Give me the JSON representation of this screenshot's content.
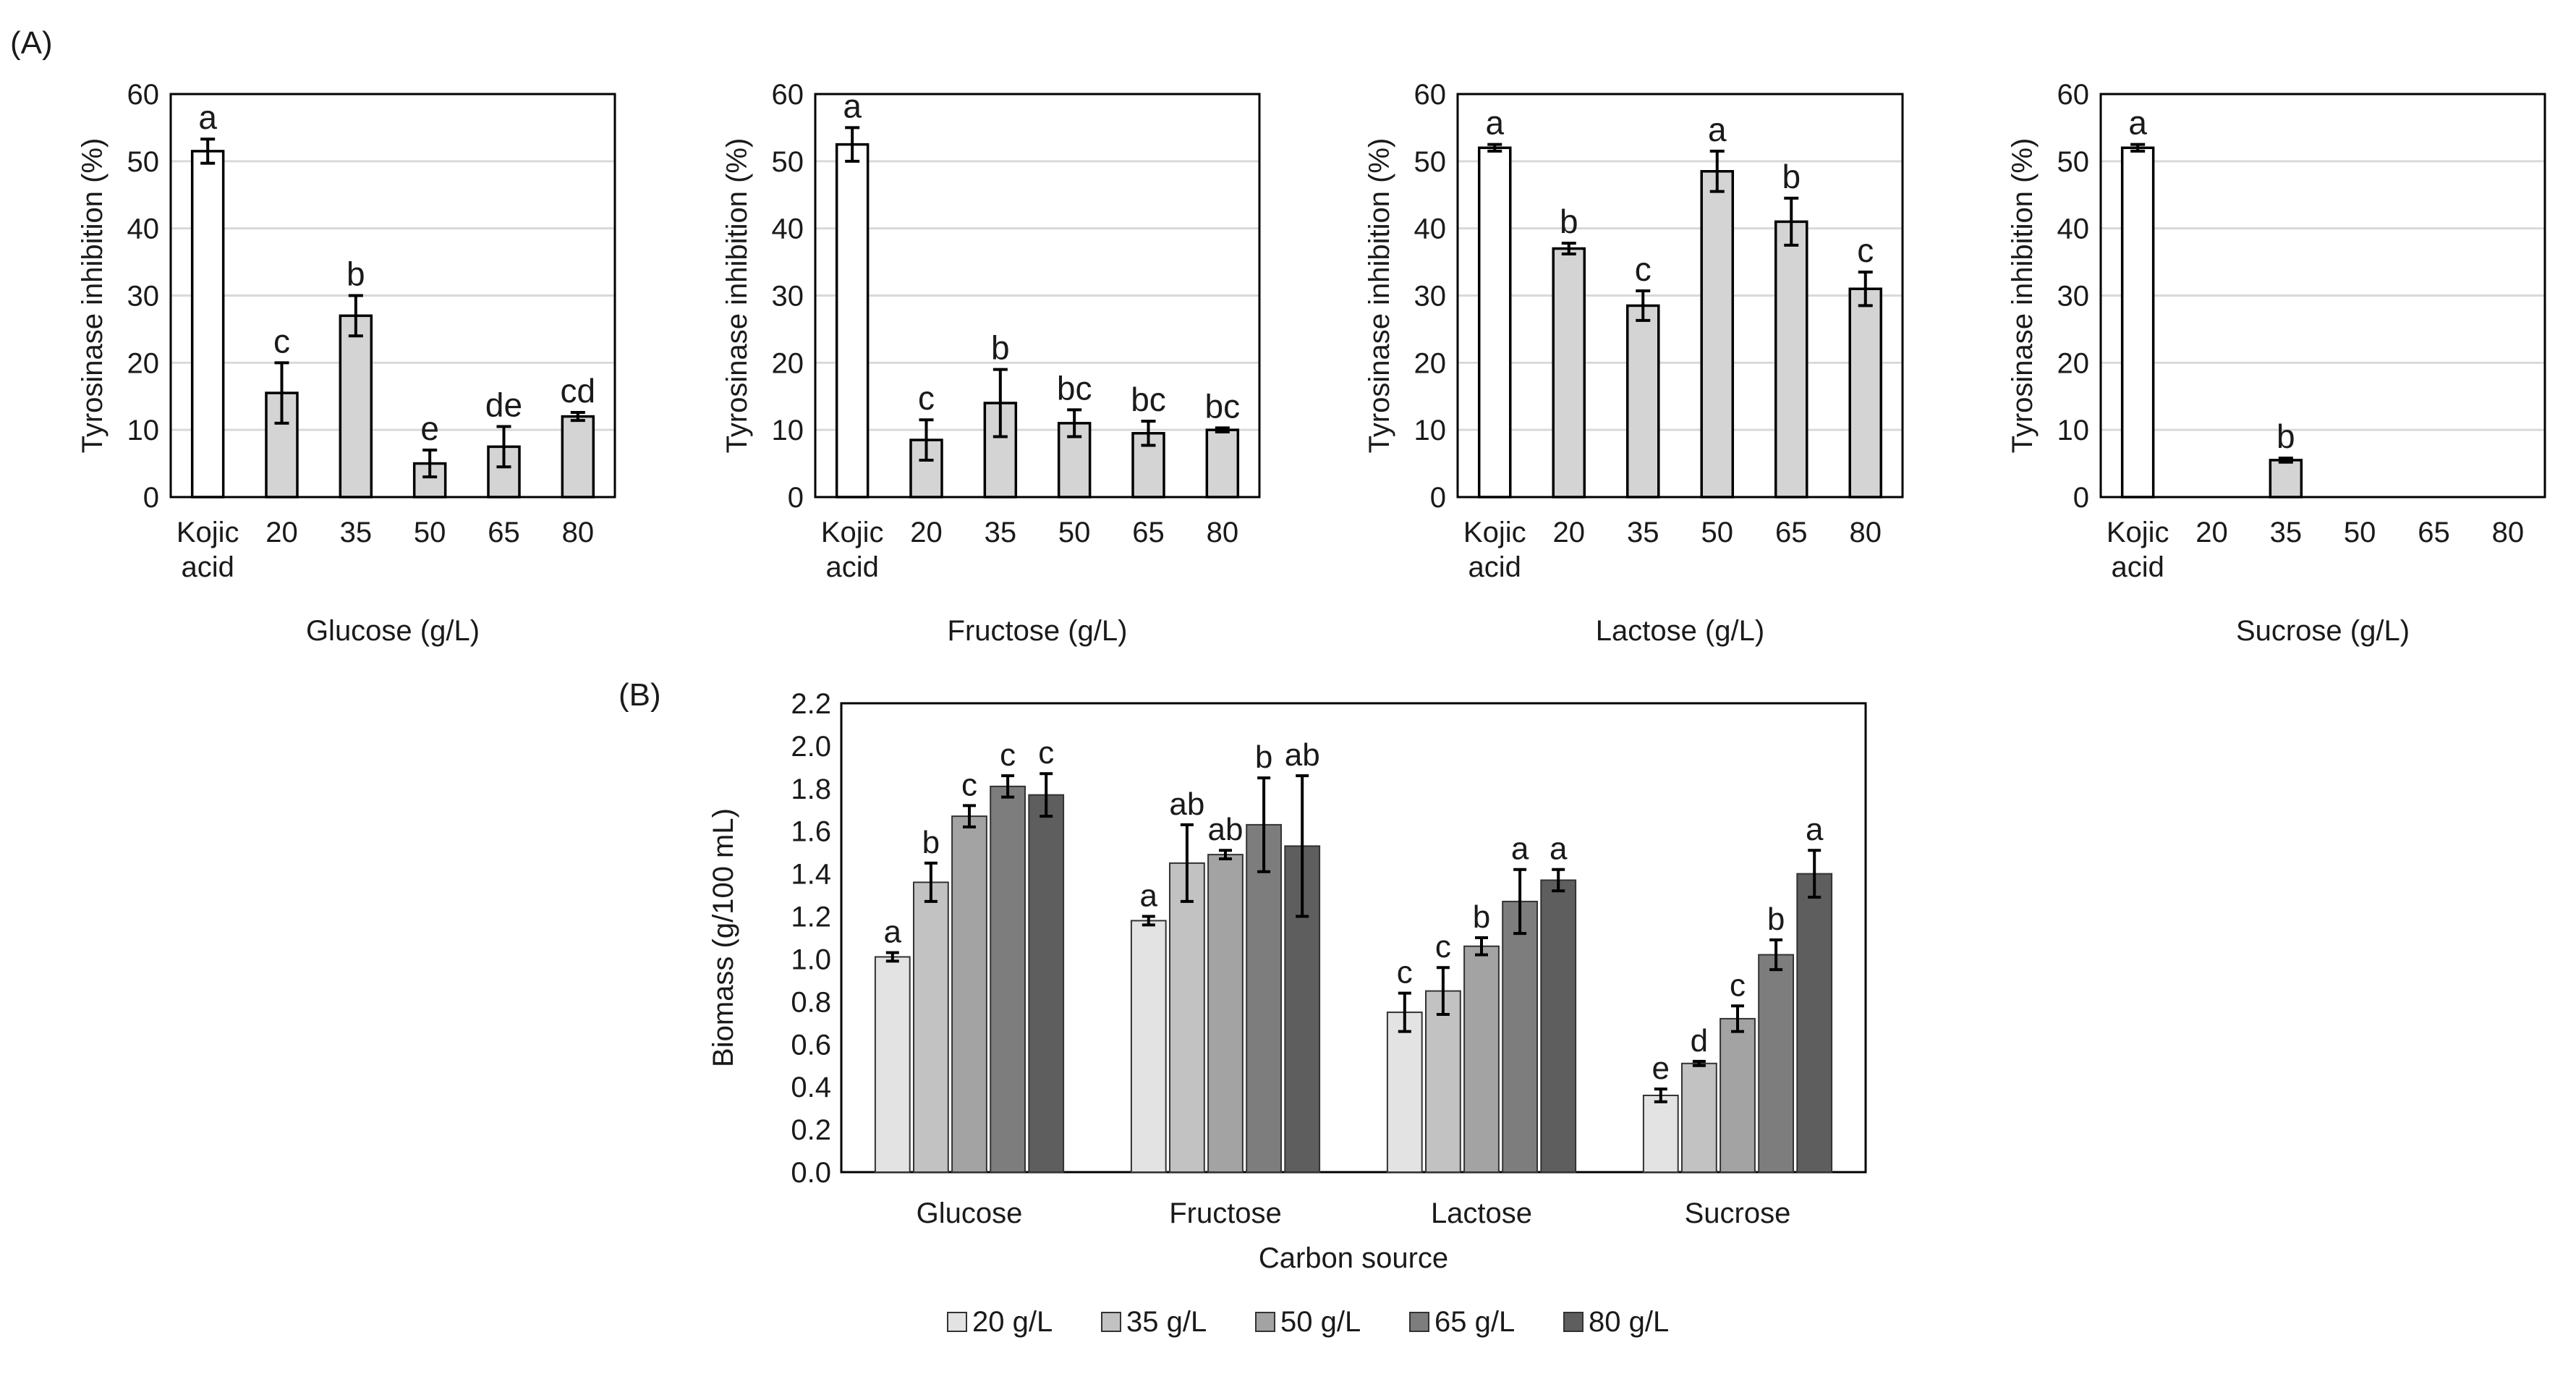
{
  "panel_labels": {
    "a": "(A)",
    "b": "(B)"
  },
  "colors": {
    "kojic": "#ffffff",
    "treatment": "#d4d4d4",
    "outline": "#000000",
    "grid": "#d9d9d9",
    "legend": [
      "#e3e3e3",
      "#c2c2c2",
      "#a3a3a3",
      "#7d7d7d",
      "#5e5e5e"
    ]
  },
  "chart_data": [
    {
      "type": "bar",
      "panel": "A",
      "categories": [
        "Kojic acid",
        "20",
        "35",
        "50",
        "65",
        "80"
      ],
      "values": [
        51.5,
        15.5,
        27,
        5,
        7.5,
        12
      ],
      "errors": [
        1.8,
        4.5,
        3,
        2,
        3,
        0.6
      ],
      "letters": [
        "a",
        "c",
        "b",
        "e",
        "de",
        "cd"
      ],
      "xlabel": "Glucose (g/L)",
      "ylabel": "Tyrosinase inhibition (%)",
      "ylim": [
        0,
        60
      ],
      "yticks": [
        "0",
        "10",
        "20",
        "30",
        "40",
        "50",
        "60"
      ]
    },
    {
      "type": "bar",
      "panel": "A",
      "categories": [
        "Kojic acid",
        "20",
        "35",
        "50",
        "65",
        "80"
      ],
      "values": [
        52.5,
        8.5,
        14,
        11,
        9.5,
        10
      ],
      "errors": [
        2.5,
        3,
        5,
        2,
        1.8,
        0.3
      ],
      "letters": [
        "a",
        "c",
        "b",
        "bc",
        "bc",
        "bc"
      ],
      "xlabel": "Fructose (g/L)",
      "ylabel": "Tyrosinase inhibition (%)",
      "ylim": [
        0,
        60
      ],
      "yticks": [
        "0",
        "10",
        "20",
        "30",
        "40",
        "50",
        "60"
      ]
    },
    {
      "type": "bar",
      "panel": "A",
      "categories": [
        "Kojic acid",
        "20",
        "35",
        "50",
        "65",
        "80"
      ],
      "values": [
        52,
        37,
        28.5,
        48.5,
        41,
        31
      ],
      "errors": [
        0.5,
        0.8,
        2.2,
        3,
        3.5,
        2.5
      ],
      "letters": [
        "a",
        "b",
        "c",
        "a",
        "b",
        "c"
      ],
      "xlabel": "Lactose (g/L)",
      "ylabel": "Tyrosinase inhibition (%)",
      "ylim": [
        0,
        60
      ],
      "yticks": [
        "0",
        "10",
        "20",
        "30",
        "40",
        "50",
        "60"
      ]
    },
    {
      "type": "bar",
      "panel": "A",
      "categories": [
        "Kojic acid",
        "20",
        "35",
        "50",
        "65",
        "80"
      ],
      "values": [
        52,
        0,
        5.5,
        0,
        0,
        0
      ],
      "errors": [
        0.5,
        0,
        0.3,
        0,
        0,
        0
      ],
      "letters": [
        "a",
        "",
        "b",
        "",
        "",
        ""
      ],
      "xlabel": "Sucrose (g/L)",
      "ylabel": "Tyrosinase inhibition (%)",
      "ylim": [
        0,
        60
      ],
      "yticks": [
        "0",
        "10",
        "20",
        "30",
        "40",
        "50",
        "60"
      ]
    },
    {
      "type": "bar",
      "panel": "B",
      "categories": [
        "Glucose",
        "Fructose",
        "Lactose",
        "Sucrose"
      ],
      "series": [
        {
          "name": "20 g/L",
          "values": [
            1.01,
            1.18,
            0.75,
            0.36
          ],
          "errors": [
            0.02,
            0.02,
            0.09,
            0.03
          ],
          "letters": [
            "a",
            "a",
            "c",
            "e"
          ]
        },
        {
          "name": "35 g/L",
          "values": [
            1.36,
            1.45,
            0.85,
            0.51
          ],
          "errors": [
            0.09,
            0.18,
            0.11,
            0.01
          ],
          "letters": [
            "b",
            "ab",
            "c",
            "d"
          ]
        },
        {
          "name": "50 g/L",
          "values": [
            1.67,
            1.49,
            1.06,
            0.72
          ],
          "errors": [
            0.05,
            0.02,
            0.04,
            0.06
          ],
          "letters": [
            "c",
            "ab",
            "b",
            "c"
          ]
        },
        {
          "name": "65 g/L",
          "values": [
            1.81,
            1.63,
            1.27,
            1.02
          ],
          "errors": [
            0.05,
            0.22,
            0.15,
            0.07
          ],
          "letters": [
            "c",
            "b",
            "a",
            "b"
          ]
        },
        {
          "name": "80 g/L",
          "values": [
            1.77,
            1.53,
            1.37,
            1.4
          ],
          "errors": [
            0.1,
            0.33,
            0.05,
            0.11
          ],
          "letters": [
            "c",
            "ab",
            "a",
            "a"
          ]
        }
      ],
      "xlabel": "Carbon source",
      "ylabel": "Biomass (g/100 mL)",
      "ylim": [
        0,
        2.2
      ],
      "yticks": [
        "0.0",
        "0.2",
        "0.4",
        "0.6",
        "0.8",
        "1.0",
        "1.2",
        "1.4",
        "1.6",
        "1.8",
        "2.0",
        "2.2"
      ],
      "legend_position": "bottom"
    }
  ]
}
